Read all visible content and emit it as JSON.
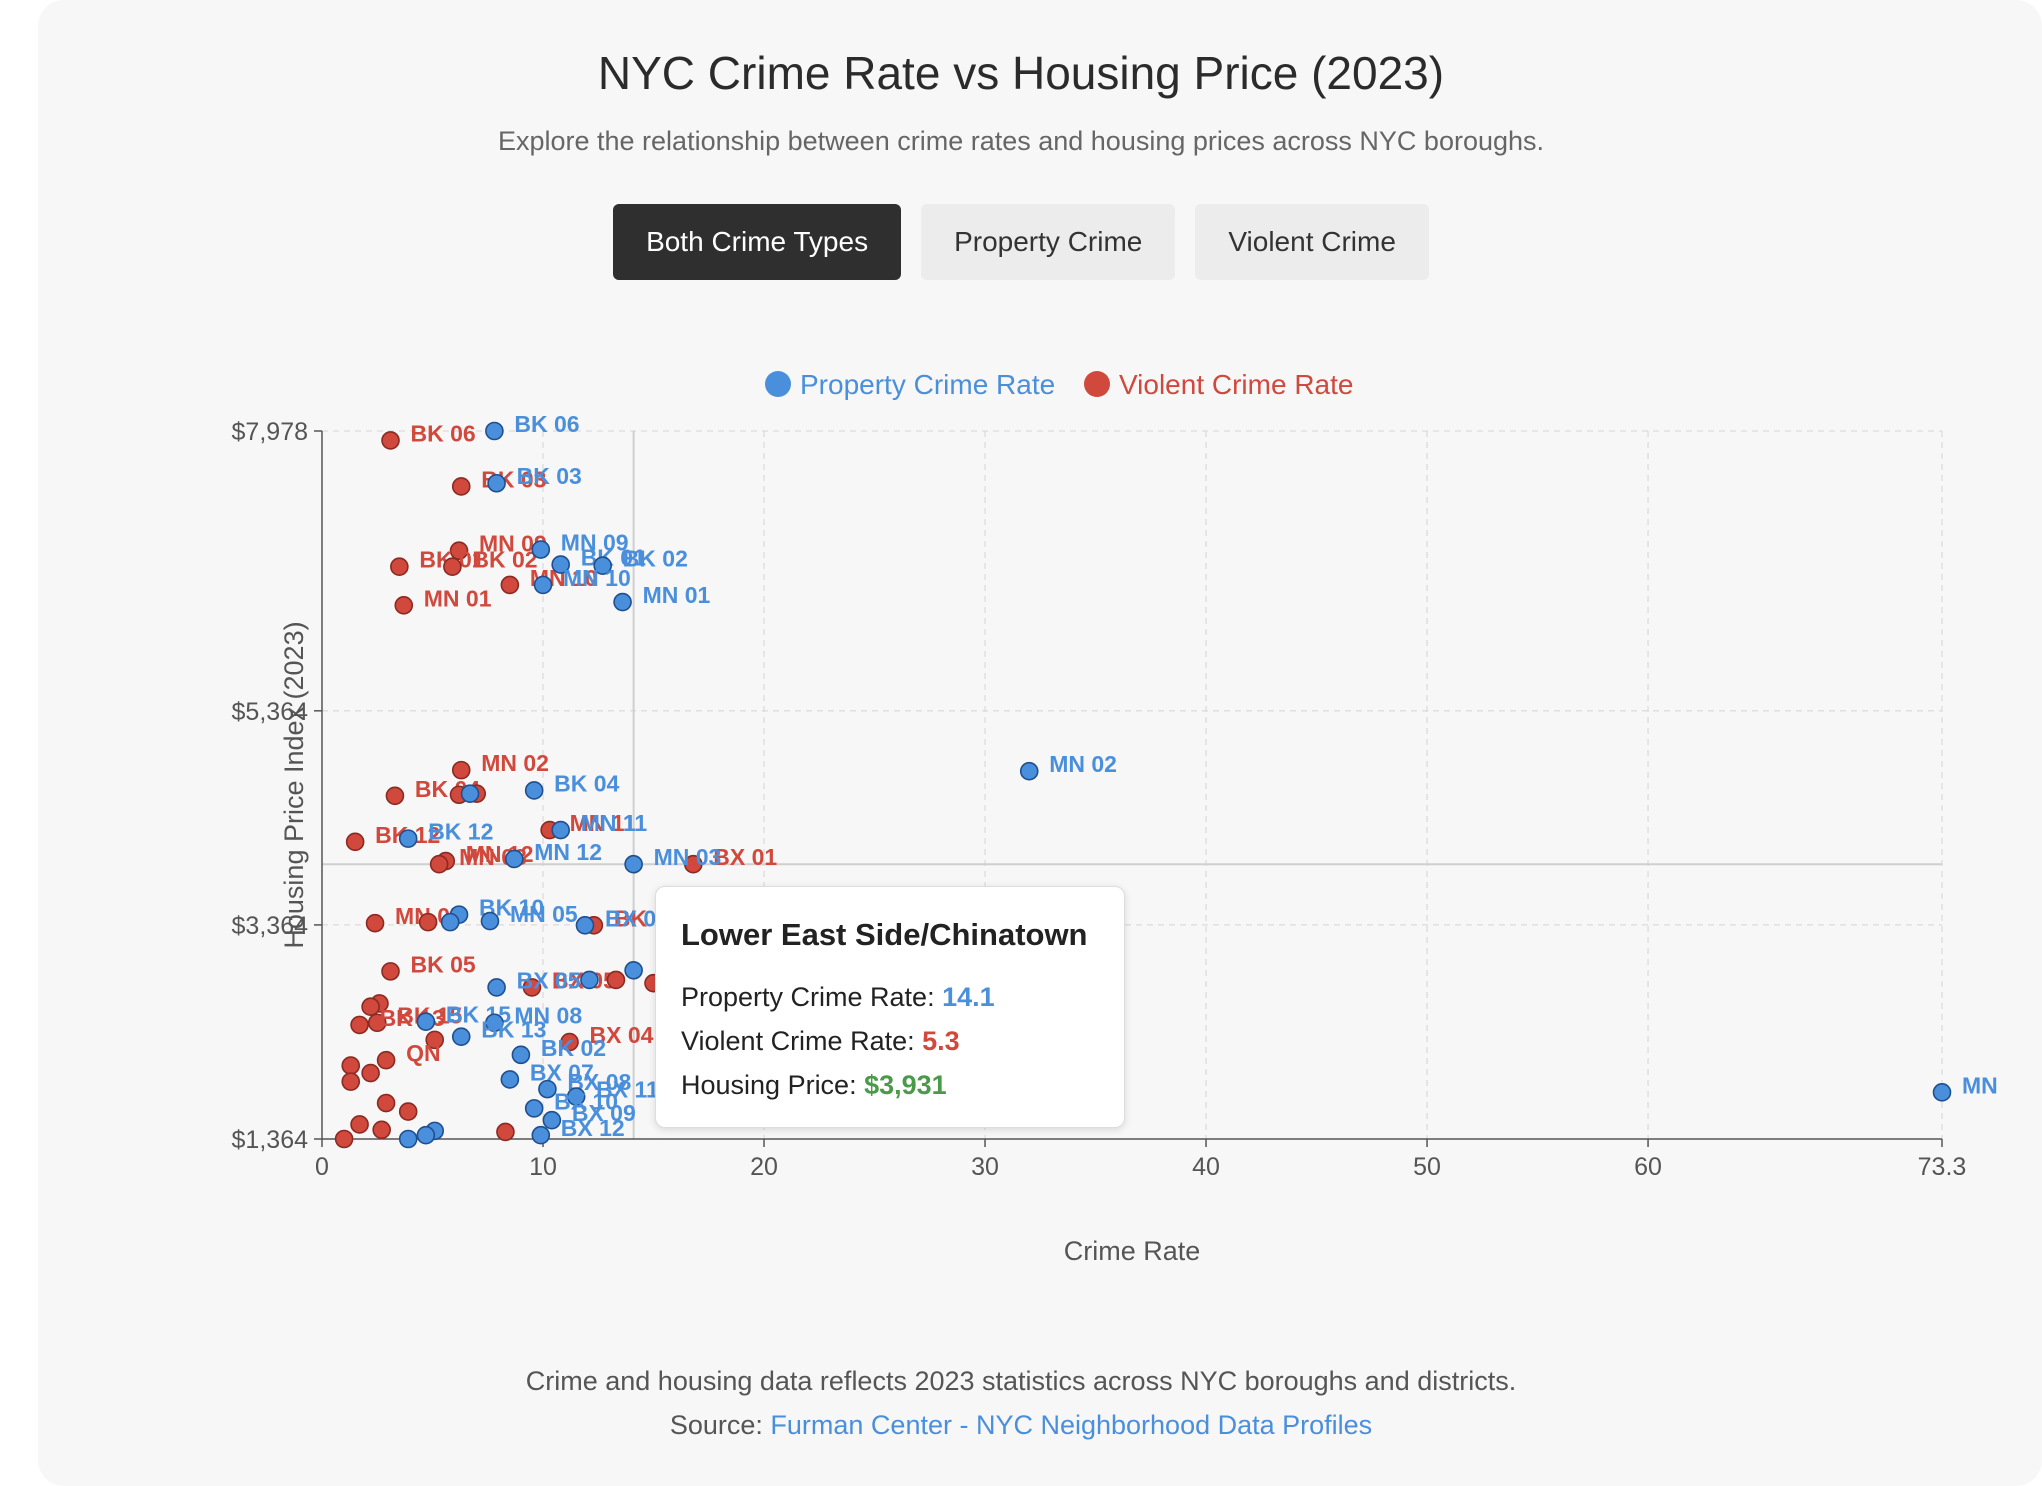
{
  "header": {
    "title": "NYC Crime Rate vs Housing Price (2023)",
    "subtitle": "Explore the relationship between crime rates and housing prices across NYC boroughs."
  },
  "toggles": [
    {
      "label": "Both Crime Types",
      "active": true
    },
    {
      "label": "Property Crime",
      "active": false
    },
    {
      "label": "Violent Crime",
      "active": false
    }
  ],
  "colors": {
    "property": "#4a8fdc",
    "violent": "#d1483c",
    "price": "#4a9a4a"
  },
  "tooltip": {
    "title": "Lower East Side/Chinatown",
    "property_label": "Property Crime Rate:",
    "property_value": "14.1",
    "violent_label": "Violent Crime Rate:",
    "violent_value": "5.3",
    "price_label": "Housing Price:",
    "price_value": "$3,931"
  },
  "footer": {
    "note": "Crime and housing data reflects 2023 statistics across NYC boroughs and districts.",
    "source_label": "Source:",
    "source_link": "Furman Center - NYC Neighborhood Data Profiles"
  },
  "chart_data": {
    "type": "scatter",
    "xlabel": "Crime Rate",
    "ylabel": "Housing Price Index (2023)",
    "xlim": [
      0,
      73.3
    ],
    "ylim": [
      1364,
      7978
    ],
    "x_ticks": [
      "0",
      "10",
      "20",
      "30",
      "40",
      "50",
      "60",
      "73.3"
    ],
    "x_tick_values": [
      0,
      10,
      20,
      30,
      40,
      50,
      60,
      73.3
    ],
    "y_ticks": [
      "$1,364",
      "$3,364",
      "$5,364",
      "$7,978"
    ],
    "y_tick_values": [
      1364,
      3364,
      5364,
      7978
    ],
    "grid": true,
    "legend": "top-center",
    "crosshair": {
      "x": 14.1,
      "y": 3931
    },
    "series": [
      {
        "name": "Property Crime Rate",
        "points": [
          {
            "label": "BK 06",
            "x": 7.8,
            "y": 7978
          },
          {
            "label": "BK 03",
            "x": 7.9,
            "y": 7490
          },
          {
            "label": "MN 09",
            "x": 9.9,
            "y": 6870
          },
          {
            "label": "BK 01",
            "x": 10.8,
            "y": 6730
          },
          {
            "label": "BK 02",
            "x": 12.7,
            "y": 6720
          },
          {
            "label": "MN 10",
            "x": 10.0,
            "y": 6540
          },
          {
            "label": "MN 01",
            "x": 13.6,
            "y": 6380
          },
          {
            "label": "MN 02",
            "x": 32.0,
            "y": 4800
          },
          {
            "label": "BK 04",
            "x": 9.6,
            "y": 4620
          },
          {
            "label": "",
            "x": 6.7,
            "y": 4590
          },
          {
            "label": "MN 11",
            "x": 10.8,
            "y": 4250
          },
          {
            "label": "BK 12",
            "x": 3.9,
            "y": 4170
          },
          {
            "label": "MN 12",
            "x": 8.7,
            "y": 3980
          },
          {
            "label": "MN 03",
            "x": 14.1,
            "y": 3931
          },
          {
            "label": "BK 10",
            "x": 6.2,
            "y": 3460
          },
          {
            "label": "MN 05",
            "x": 7.6,
            "y": 3400
          },
          {
            "label": "",
            "x": 5.8,
            "y": 3390
          },
          {
            "label": "BX 08",
            "x": 11.9,
            "y": 3360
          },
          {
            "label": "MN 06",
            "x": 14.1,
            "y": 2940
          },
          {
            "label": "",
            "x": 12.1,
            "y": 2850
          },
          {
            "label": "BX 05",
            "x": 7.9,
            "y": 2780
          },
          {
            "label": "BK 15",
            "x": 4.7,
            "y": 2460
          },
          {
            "label": "MN 08",
            "x": 7.8,
            "y": 2450
          },
          {
            "label": "BK 13",
            "x": 6.3,
            "y": 2320
          },
          {
            "label": "MN 04",
            "x": 16.3,
            "y": 2100
          },
          {
            "label": "BK 02",
            "x": 9.0,
            "y": 2150
          },
          {
            "label": "BX 07",
            "x": 8.5,
            "y": 1920
          },
          {
            "label": "BX 08",
            "x": 10.2,
            "y": 1830
          },
          {
            "label": "BX 11",
            "x": 11.5,
            "y": 1760
          },
          {
            "label": "BX 10",
            "x": 9.6,
            "y": 1650
          },
          {
            "label": "BX 09",
            "x": 10.4,
            "y": 1540
          },
          {
            "label": "BX 12",
            "x": 9.9,
            "y": 1400
          },
          {
            "label": "",
            "x": 5.1,
            "y": 1440
          },
          {
            "label": "",
            "x": 4.7,
            "y": 1400
          },
          {
            "label": "",
            "x": 3.9,
            "y": 1364
          },
          {
            "label": "MN",
            "x": 73.3,
            "y": 1800
          }
        ]
      },
      {
        "name": "Violent Crime Rate",
        "points": [
          {
            "label": "BK 06",
            "x": 3.1,
            "y": 7890
          },
          {
            "label": "BK 03",
            "x": 6.3,
            "y": 7460
          },
          {
            "label": "MN 09",
            "x": 6.2,
            "y": 6860
          },
          {
            "label": "BK 01",
            "x": 3.5,
            "y": 6710
          },
          {
            "label": "BK 02",
            "x": 5.9,
            "y": 6710
          },
          {
            "label": "MN 10",
            "x": 8.5,
            "y": 6540
          },
          {
            "label": "MN 01",
            "x": 3.7,
            "y": 6350
          },
          {
            "label": "MN 02",
            "x": 6.3,
            "y": 4810
          },
          {
            "label": "BK 04",
            "x": 3.3,
            "y": 4570
          },
          {
            "label": "",
            "x": 6.2,
            "y": 4580
          },
          {
            "label": "",
            "x": 7.0,
            "y": 4590
          },
          {
            "label": "MN 11",
            "x": 10.3,
            "y": 4250
          },
          {
            "label": "BK 12",
            "x": 1.5,
            "y": 4140
          },
          {
            "label": "MN 12",
            "x": 5.6,
            "y": 3960
          },
          {
            "label": "MN 03",
            "x": 5.3,
            "y": 3931
          },
          {
            "label": "BX 01",
            "x": 16.8,
            "y": 3931
          },
          {
            "label": "MN 05",
            "x": 2.4,
            "y": 3380
          },
          {
            "label": "",
            "x": 4.8,
            "y": 3390
          },
          {
            "label": "BK 16",
            "x": 12.3,
            "y": 3360
          },
          {
            "label": "BK 05",
            "x": 3.1,
            "y": 2930
          },
          {
            "label": "BX 05",
            "x": 9.5,
            "y": 2780
          },
          {
            "label": "",
            "x": 13.3,
            "y": 2850
          },
          {
            "label": "",
            "x": 15.0,
            "y": 2820
          },
          {
            "label": "",
            "x": 2.6,
            "y": 2630
          },
          {
            "label": "",
            "x": 2.2,
            "y": 2600
          },
          {
            "label": "BK 15",
            "x": 2.5,
            "y": 2450
          },
          {
            "label": "BK 13",
            "x": 1.7,
            "y": 2430
          },
          {
            "label": "BX 04",
            "x": 11.2,
            "y": 2270
          },
          {
            "label": "",
            "x": 5.1,
            "y": 2290
          },
          {
            "label": "QN",
            "x": 2.9,
            "y": 2100
          },
          {
            "label": "",
            "x": 1.3,
            "y": 2050
          },
          {
            "label": "",
            "x": 2.2,
            "y": 1980
          },
          {
            "label": "",
            "x": 1.3,
            "y": 1900
          },
          {
            "label": "",
            "x": 15.9,
            "y": 1820
          },
          {
            "label": "",
            "x": 2.9,
            "y": 1700
          },
          {
            "label": "",
            "x": 3.9,
            "y": 1620
          },
          {
            "label": "",
            "x": 1.7,
            "y": 1500
          },
          {
            "label": "",
            "x": 2.7,
            "y": 1450
          },
          {
            "label": "",
            "x": 8.3,
            "y": 1430
          },
          {
            "label": "",
            "x": 1.0,
            "y": 1364
          }
        ]
      }
    ]
  }
}
